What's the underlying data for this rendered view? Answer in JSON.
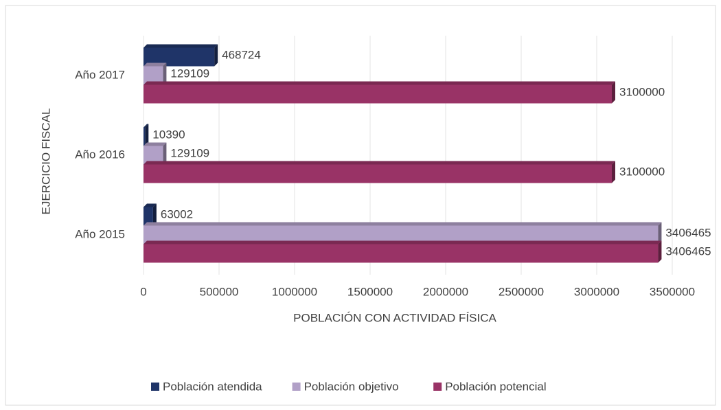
{
  "chart_data": {
    "type": "barh",
    "xlabel": "POBLACIÓN CON ACTIVIDAD FÍSICA",
    "ylabel": "EJERCICIO FISCAL",
    "categories": [
      "Año 2015",
      "Año 2016",
      "Año 2017"
    ],
    "series": [
      {
        "name": "Población atendida",
        "color": "#1f3468",
        "values": [
          63002,
          10390,
          468724
        ]
      },
      {
        "name": "Población objetivo",
        "color": "#b1a0c7",
        "values": [
          3406465,
          129109,
          129109
        ]
      },
      {
        "name": "Población potencial",
        "color": "#993366",
        "values": [
          3406465,
          3100000,
          3100000
        ]
      }
    ],
    "xlim": [
      0,
      3500000
    ],
    "xticks": [
      0,
      500000,
      1000000,
      1500000,
      2000000,
      2500000,
      3000000,
      3500000
    ],
    "grid": true,
    "legend": "bottom"
  }
}
